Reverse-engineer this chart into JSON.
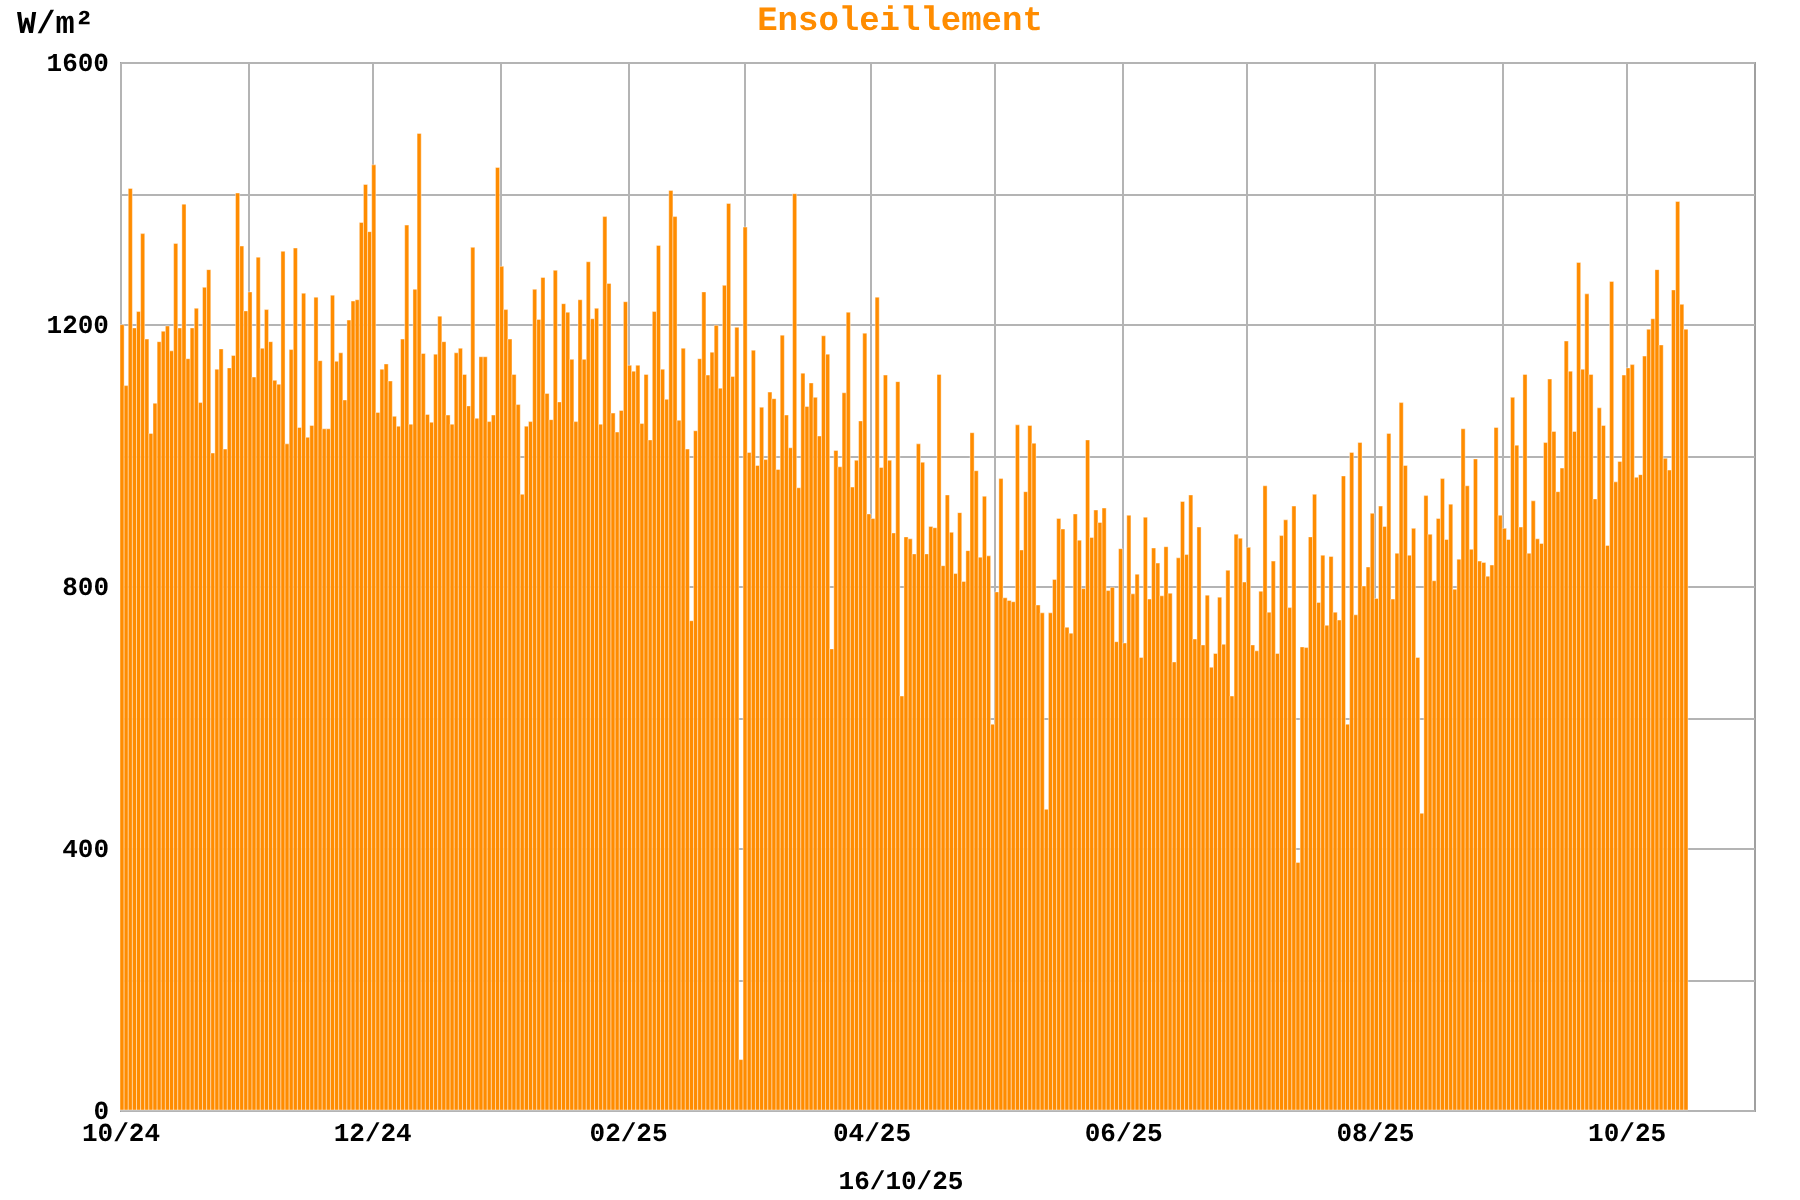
{
  "chart_data": {
    "type": "bar",
    "title": "Ensoleillement",
    "xlabel": "16/10/25",
    "ylabel": "W/m²",
    "color": "#ff8c00",
    "x": [
      "2024-10-01",
      "2024-10-02",
      "2024-10-03",
      "2024-10-04",
      "2024-10-05",
      "2024-10-06",
      "2024-10-07",
      "2024-10-08",
      "2024-10-09",
      "2024-10-10",
      "2024-10-11",
      "2024-10-12",
      "2024-10-13",
      "2024-10-14",
      "2024-10-15",
      "2024-10-16",
      "2024-10-17",
      "2024-10-18",
      "2024-10-19",
      "2024-10-20",
      "2024-10-21",
      "2024-10-22",
      "2024-10-23",
      "2024-10-24",
      "2024-10-25",
      "2024-10-26",
      "2024-10-27",
      "2024-10-28",
      "2024-10-29",
      "2024-10-30",
      "2024-10-31",
      "2024-11-01",
      "2024-11-02",
      "2024-11-03",
      "2024-11-04",
      "2024-11-05",
      "2024-11-06",
      "2024-11-07",
      "2024-11-08",
      "2024-11-09",
      "2024-11-10",
      "2024-11-11",
      "2024-11-12",
      "2024-11-13",
      "2024-11-14",
      "2024-11-15",
      "2024-11-16",
      "2024-11-17",
      "2024-11-18",
      "2024-11-19",
      "2024-11-20",
      "2024-11-21",
      "2024-11-22",
      "2024-11-23",
      "2024-11-24",
      "2024-11-25",
      "2024-11-26",
      "2024-11-27",
      "2024-11-28",
      "2024-11-29",
      "2024-11-30",
      "2024-12-01",
      "2024-12-02",
      "2024-12-03",
      "2024-12-04",
      "2024-12-05",
      "2024-12-06",
      "2024-12-07",
      "2024-12-08",
      "2024-12-09",
      "2024-12-10",
      "2024-12-11",
      "2024-12-12",
      "2024-12-13",
      "2024-12-14",
      "2024-12-15",
      "2024-12-16",
      "2024-12-17",
      "2024-12-18",
      "2024-12-19",
      "2024-12-20",
      "2024-12-21",
      "2024-12-22",
      "2024-12-23",
      "2024-12-24",
      "2024-12-25",
      "2024-12-26",
      "2024-12-27",
      "2024-12-28",
      "2024-12-29",
      "2024-12-30",
      "2024-12-31",
      "2025-01-01",
      "2025-01-02",
      "2025-01-03",
      "2025-01-04",
      "2025-01-05",
      "2025-01-06",
      "2025-01-07",
      "2025-01-08",
      "2025-01-09",
      "2025-01-10",
      "2025-01-11",
      "2025-01-12",
      "2025-01-13",
      "2025-01-14",
      "2025-01-15",
      "2025-01-16",
      "2025-01-17",
      "2025-01-18",
      "2025-01-19",
      "2025-01-20",
      "2025-01-21",
      "2025-01-22",
      "2025-01-23",
      "2025-01-24",
      "2025-01-25",
      "2025-01-26",
      "2025-01-27",
      "2025-01-28",
      "2025-01-29",
      "2025-01-30",
      "2025-01-31",
      "2025-02-01",
      "2025-02-02",
      "2025-02-03",
      "2025-02-04",
      "2025-02-05",
      "2025-02-06",
      "2025-02-07",
      "2025-02-08",
      "2025-02-09",
      "2025-02-10",
      "2025-02-11",
      "2025-02-12",
      "2025-02-13",
      "2025-02-14",
      "2025-02-15",
      "2025-02-16",
      "2025-02-17",
      "2025-02-18",
      "2025-02-19",
      "2025-02-20",
      "2025-02-21",
      "2025-02-22",
      "2025-02-23",
      "2025-02-24",
      "2025-02-25",
      "2025-02-26",
      "2025-02-27",
      "2025-02-28",
      "2025-03-01",
      "2025-03-02",
      "2025-03-03",
      "2025-03-04",
      "2025-03-05",
      "2025-03-06",
      "2025-03-07",
      "2025-03-08",
      "2025-03-09",
      "2025-03-10",
      "2025-03-11",
      "2025-03-12",
      "2025-03-13",
      "2025-03-14",
      "2025-03-15",
      "2025-03-16",
      "2025-03-17",
      "2025-03-18",
      "2025-03-19",
      "2025-03-20",
      "2025-03-21",
      "2025-03-22",
      "2025-03-23",
      "2025-03-24",
      "2025-03-25",
      "2025-03-26",
      "2025-03-27",
      "2025-03-28",
      "2025-03-29",
      "2025-03-30",
      "2025-03-31",
      "2025-04-01",
      "2025-04-02",
      "2025-04-03",
      "2025-04-04",
      "2025-04-05",
      "2025-04-06",
      "2025-04-07",
      "2025-04-08",
      "2025-04-09",
      "2025-04-10",
      "2025-04-11",
      "2025-04-12",
      "2025-04-13",
      "2025-04-14",
      "2025-04-15",
      "2025-04-16",
      "2025-04-17",
      "2025-04-18",
      "2025-04-19",
      "2025-04-20",
      "2025-04-21",
      "2025-04-22",
      "2025-04-23",
      "2025-04-24",
      "2025-04-25",
      "2025-04-26",
      "2025-04-27",
      "2025-04-28",
      "2025-04-29",
      "2025-04-30",
      "2025-05-01",
      "2025-05-02",
      "2025-05-03",
      "2025-05-04",
      "2025-05-05",
      "2025-05-06",
      "2025-05-07",
      "2025-05-08",
      "2025-05-09",
      "2025-05-10",
      "2025-05-11",
      "2025-05-12",
      "2025-05-13",
      "2025-05-14",
      "2025-05-15",
      "2025-05-16",
      "2025-05-17",
      "2025-05-18",
      "2025-05-19",
      "2025-05-20",
      "2025-05-21",
      "2025-05-22",
      "2025-05-23",
      "2025-05-24",
      "2025-05-25",
      "2025-05-26",
      "2025-05-27",
      "2025-05-28",
      "2025-05-29",
      "2025-05-30",
      "2025-05-31",
      "2025-06-01",
      "2025-06-02",
      "2025-06-03",
      "2025-06-04",
      "2025-06-05",
      "2025-06-06",
      "2025-06-07",
      "2025-06-08",
      "2025-06-09",
      "2025-06-10",
      "2025-06-11",
      "2025-06-12",
      "2025-06-13",
      "2025-06-14",
      "2025-06-15",
      "2025-06-16",
      "2025-06-17",
      "2025-06-18",
      "2025-06-19",
      "2025-06-20",
      "2025-06-21",
      "2025-06-22",
      "2025-06-23",
      "2025-06-24",
      "2025-06-25",
      "2025-06-26",
      "2025-06-27",
      "2025-06-28",
      "2025-06-29",
      "2025-06-30",
      "2025-07-01",
      "2025-07-02",
      "2025-07-03",
      "2025-07-04",
      "2025-07-05",
      "2025-07-06",
      "2025-07-07",
      "2025-07-08",
      "2025-07-09",
      "2025-07-10",
      "2025-07-11",
      "2025-07-12",
      "2025-07-13",
      "2025-07-14",
      "2025-07-15",
      "2025-07-16",
      "2025-07-17",
      "2025-07-18",
      "2025-07-19",
      "2025-07-20",
      "2025-07-21",
      "2025-07-22",
      "2025-07-23",
      "2025-07-24",
      "2025-07-25",
      "2025-07-26",
      "2025-07-27",
      "2025-07-28",
      "2025-07-29",
      "2025-07-30",
      "2025-07-31",
      "2025-08-01",
      "2025-08-02",
      "2025-08-03",
      "2025-08-04",
      "2025-08-05",
      "2025-08-06",
      "2025-08-07",
      "2025-08-08",
      "2025-08-09",
      "2025-08-10",
      "2025-08-11",
      "2025-08-12",
      "2025-08-13",
      "2025-08-14",
      "2025-08-15",
      "2025-08-16",
      "2025-08-17",
      "2025-08-18",
      "2025-08-19",
      "2025-08-20",
      "2025-08-21",
      "2025-08-22",
      "2025-08-23",
      "2025-08-24",
      "2025-08-25",
      "2025-08-26",
      "2025-08-27",
      "2025-08-28",
      "2025-08-29",
      "2025-08-30",
      "2025-08-31",
      "2025-09-01",
      "2025-09-02",
      "2025-09-03",
      "2025-09-04",
      "2025-09-05",
      "2025-09-06",
      "2025-09-07",
      "2025-09-08",
      "2025-09-09",
      "2025-09-10",
      "2025-09-11",
      "2025-09-12",
      "2025-09-13",
      "2025-09-14",
      "2025-09-15",
      "2025-09-16",
      "2025-09-17",
      "2025-09-18",
      "2025-09-19",
      "2025-09-20",
      "2025-09-21",
      "2025-09-22",
      "2025-09-23",
      "2025-09-24",
      "2025-09-25",
      "2025-09-26",
      "2025-09-27",
      "2025-09-28",
      "2025-09-29",
      "2025-09-30",
      "2025-10-01",
      "2025-10-02",
      "2025-10-03",
      "2025-10-04",
      "2025-10-05",
      "2025-10-06",
      "2025-10-07",
      "2025-10-08",
      "2025-10-09",
      "2025-10-10",
      "2025-10-11",
      "2025-10-12",
      "2025-10-13",
      "2025-10-14",
      "2025-10-15"
    ],
    "values": [
      1199,
      1106,
      1407,
      1194,
      1219,
      1338,
      1177,
      1033,
      1079,
      1173,
      1189,
      1197,
      1159,
      1323,
      1194,
      1383,
      1147,
      1194,
      1224,
      1080,
      1256,
      1283,
      1003,
      1131,
      1162,
      1009,
      1133,
      1152,
      1400,
      1319,
      1220,
      1249,
      1119,
      1302,
      1163,
      1222,
      1173,
      1114,
      1108,
      1311,
      1017,
      1161,
      1316,
      1042,
      1247,
      1027,
      1045,
      1241,
      1144,
      1040,
      1040,
      1244,
      1143,
      1156,
      1084,
      1206,
      1235,
      1237,
      1355,
      1413,
      1341,
      1443,
      1065,
      1131,
      1139,
      1113,
      1059,
      1044,
      1177,
      1351,
      1047,
      1253,
      1491,
      1155,
      1062,
      1050,
      1154,
      1212,
      1173,
      1061,
      1047,
      1156,
      1163,
      1123,
      1075,
      1317,
      1056,
      1150,
      1150,
      1051,
      1061,
      1439,
      1288,
      1222,
      1177,
      1123,
      1077,
      940,
      1044,
      1051,
      1253,
      1207,
      1271,
      1094,
      1054,
      1282,
      1081,
      1231,
      1218,
      1146,
      1051,
      1237,
      1146,
      1295,
      1208,
      1224,
      1047,
      1364,
      1262,
      1064,
      1035,
      1068,
      1234,
      1137,
      1128,
      1137,
      1048,
      1123,
      1023,
      1219,
      1320,
      1131,
      1085,
      1404,
      1364,
      1053,
      1163,
      1009,
      747,
      1037,
      1147,
      1249,
      1122,
      1157,
      1198,
      1102,
      1259,
      1384,
      1120,
      1195,
      77,
      1348,
      1004,
      1160,
      984,
      1073,
      993,
      1096,
      1086,
      978,
      1183,
      1061,
      1011,
      1399,
      950,
      1125,
      1074,
      1110,
      1088,
      1029,
      1182,
      1154,
      704,
      1007,
      982,
      1095,
      1218,
      951,
      992,
      1052,
      1186,
      910,
      903,
      1241,
      981,
      1122,
      992,
      881,
      1112,
      632,
      875,
      872,
      849,
      1017,
      989,
      849,
      891,
      889,
      1123,
      831,
      939,
      882,
      819,
      912,
      807,
      854,
      1034,
      976,
      844,
      937,
      846,
      589,
      791,
      964,
      782,
      778,
      776,
      1046,
      855,
      944,
      1045,
      1018,
      771,
      759,
      459,
      759,
      810,
      903,
      887,
      737,
      728,
      910,
      870,
      796,
      1023,
      874,
      916,
      897,
      919,
      793,
      798,
      715,
      857,
      713,
      908,
      788,
      818,
      691,
      905,
      780,
      858,
      835,
      785,
      860,
      789,
      684,
      843,
      929,
      848,
      939,
      719,
      890,
      710,
      786,
      676,
      697,
      783,
      711,
      824,
      632,
      879,
      873,
      806,
      859,
      710,
      701,
      792,
      953,
      760,
      838,
      697,
      877,
      901,
      767,
      922,
      378,
      707,
      706,
      875,
      940,
      775,
      847,
      740,
      845,
      760,
      748,
      968,
      589,
      1004,
      756,
      1019,
      800,
      829,
      911,
      781,
      922,
      891,
      1033,
      780,
      850,
      1080,
      984,
      847,
      888,
      691,
      453,
      938,
      879,
      808,
      903,
      964,
      871,
      925,
      795,
      841,
      1040,
      953,
      856,
      994,
      838,
      836,
      815,
      832,
      1042,
      908,
      888,
      871,
      1088,
      1015,
      890,
      1123,
      850,
      930,
      872,
      865,
      1019,
      1116,
      1036,
      944,
      980,
      1174,
      1128,
      1036,
      1294,
      1131,
      1246,
      1123,
      933,
      1072,
      1045,
      862,
      1265,
      959,
      990,
      1122,
      1133,
      1138,
      966,
      970,
      1151,
      1192,
      1208,
      1283,
      1168,
      995,
      977,
      1252,
      1387,
      1230,
      1192
    ],
    "xlim": [
      "2024-10-01",
      "2025-11-01"
    ],
    "xticks": [
      {
        "value": "2024-10",
        "label": "10/24"
      },
      {
        "value": "2024-11",
        "label": null
      },
      {
        "value": "2024-12",
        "label": "12/24"
      },
      {
        "value": "2025-01",
        "label": null
      },
      {
        "value": "2025-02",
        "label": "02/25"
      },
      {
        "value": "2025-03",
        "label": null
      },
      {
        "value": "2025-04",
        "label": "04/25"
      },
      {
        "value": "2025-05",
        "label": null
      },
      {
        "value": "2025-06",
        "label": "06/25"
      },
      {
        "value": "2025-07",
        "label": null
      },
      {
        "value": "2025-08",
        "label": "08/25"
      },
      {
        "value": "2025-09",
        "label": null
      },
      {
        "value": "2025-10",
        "label": "10/25"
      }
    ],
    "ylim": [
      0,
      1600
    ],
    "yticks": [
      0,
      {
        "value": 200,
        "label": null
      },
      400,
      {
        "value": 600,
        "label": null
      },
      800,
      {
        "value": 1000,
        "label": null
      },
      1200,
      {
        "value": 1400,
        "label": null
      },
      1600
    ],
    "grid": true
  }
}
